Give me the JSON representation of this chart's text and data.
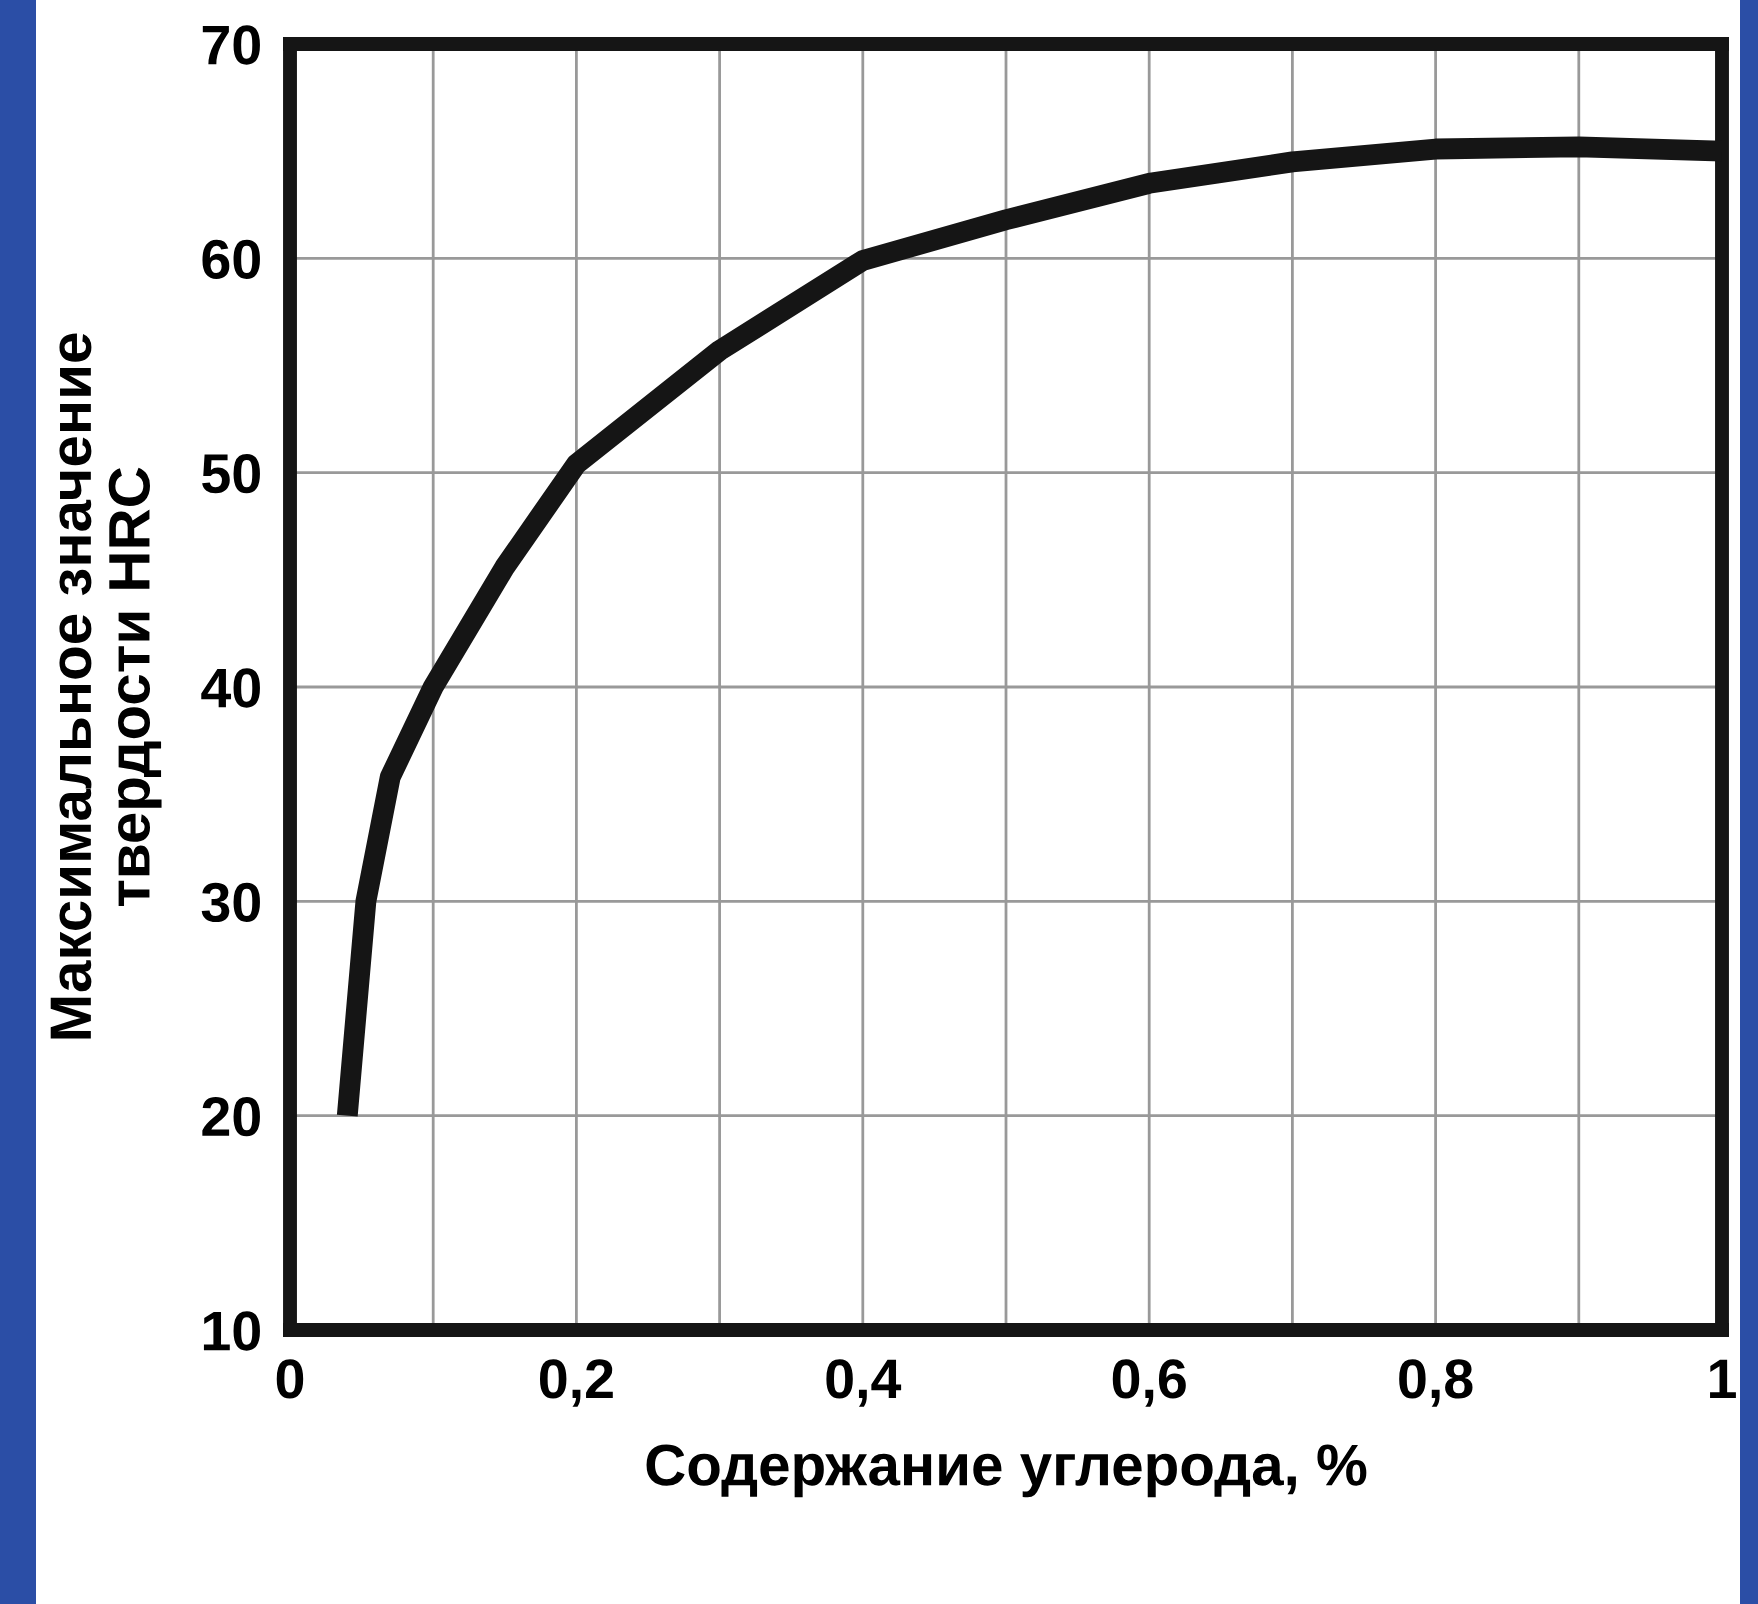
{
  "chart_data": {
    "type": "line",
    "xlabel": "Содержание углерода, %",
    "ylabel": "Максимальное значение\nтвердости HRC",
    "x": [
      0.04,
      0.053,
      0.07,
      0.1,
      0.15,
      0.2,
      0.3,
      0.4,
      0.5,
      0.6,
      0.7,
      0.8,
      0.9,
      1.0
    ],
    "series": [
      {
        "color": "#151515",
        "values": [
          20,
          30,
          35.8,
          40,
          45.6,
          50.4,
          55.7,
          59.9,
          61.8,
          63.5,
          64.5,
          65.1,
          65.2,
          65.0
        ]
      }
    ],
    "xlim": [
      0,
      1
    ],
    "ylim": [
      10,
      70
    ],
    "xticks": [
      0,
      {
        "value": 0.2,
        "label": "0,2"
      },
      {
        "value": 0.4,
        "label": "0,4"
      },
      {
        "value": 0.6,
        "label": "0,6"
      },
      {
        "value": 0.8,
        "label": "0,8"
      },
      1
    ],
    "yticks": [
      10,
      20,
      30,
      40,
      50,
      60,
      70
    ],
    "grid": true,
    "marker": "none",
    "line_style": "solid"
  }
}
